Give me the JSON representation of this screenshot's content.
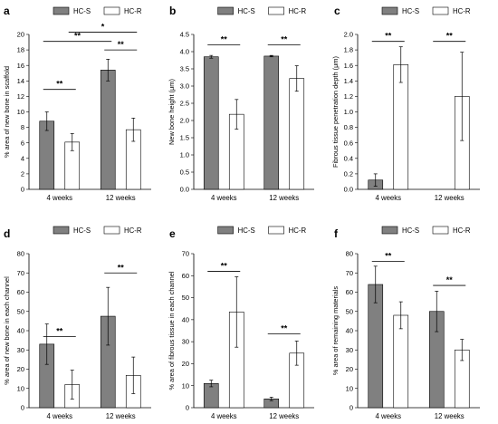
{
  "legend": {
    "series": [
      "HC-S",
      "HC-R"
    ],
    "colors": [
      "#808080",
      "#ffffff"
    ]
  },
  "chart_data": [
    {
      "panel": "a",
      "type": "bar",
      "ylabel": "% area of new bone in scaffold",
      "ylim": [
        0,
        20
      ],
      "ytick_step": 2,
      "ytick_decimals": 0,
      "categories": [
        "4 weeks",
        "12 weeks"
      ],
      "series": [
        {
          "name": "HC-S",
          "values": [
            8.8,
            15.4
          ],
          "err": [
            1.2,
            1.4
          ]
        },
        {
          "name": "HC-R",
          "values": [
            6.1,
            7.7
          ],
          "err": [
            1.1,
            1.5
          ]
        }
      ],
      "annotations": [
        {
          "text": "**",
          "from": [
            0,
            0
          ],
          "to": [
            0,
            1
          ],
          "y": 12.9
        },
        {
          "text": "**",
          "from": [
            1,
            0
          ],
          "to": [
            1,
            1
          ],
          "y": 18.0
        },
        {
          "text": "**",
          "from": [
            0,
            0
          ],
          "to": [
            1,
            0
          ],
          "y": 19.1
        },
        {
          "text": "*",
          "from": [
            0,
            1
          ],
          "to": [
            1,
            1
          ],
          "y": 20.3
        }
      ]
    },
    {
      "panel": "b",
      "type": "bar",
      "ylabel": "New bone height (μm)",
      "ylim": [
        0,
        4.5
      ],
      "ytick_step": 0.5,
      "ytick_decimals": 1,
      "categories": [
        "4 weeks",
        "12 weeks"
      ],
      "series": [
        {
          "name": "HC-S",
          "values": [
            3.85,
            3.87
          ],
          "err": [
            0.04,
            0.02
          ]
        },
        {
          "name": "HC-R",
          "values": [
            2.18,
            3.22
          ],
          "err": [
            0.43,
            0.37
          ]
        }
      ],
      "annotations": [
        {
          "text": "**",
          "from": [
            0,
            0
          ],
          "to": [
            0,
            1
          ],
          "y": 4.2
        },
        {
          "text": "**",
          "from": [
            1,
            0
          ],
          "to": [
            1,
            1
          ],
          "y": 4.2
        }
      ]
    },
    {
      "panel": "c",
      "type": "bar",
      "ylabel": "Fibrous tissue penetration depth (μm)",
      "ylim": [
        0,
        2.0
      ],
      "ytick_step": 0.2,
      "ytick_decimals": 1,
      "categories": [
        "4 weeks",
        "12 weeks"
      ],
      "series": [
        {
          "name": "HC-S",
          "values": [
            0.12,
            0
          ],
          "err": [
            0.08,
            0
          ]
        },
        {
          "name": "HC-R",
          "values": [
            1.61,
            1.2
          ],
          "err": [
            0.23,
            0.57
          ]
        }
      ],
      "annotations": [
        {
          "text": "**",
          "from": [
            0,
            0
          ],
          "to": [
            0,
            1
          ],
          "y": 1.91
        },
        {
          "text": "**",
          "from": [
            1,
            0
          ],
          "to": [
            1,
            1
          ],
          "y": 1.91
        }
      ]
    },
    {
      "panel": "d",
      "type": "bar",
      "ylabel": "% area of new bone in each channel",
      "ylim": [
        0,
        80
      ],
      "ytick_step": 10,
      "ytick_decimals": 0,
      "categories": [
        "4 weeks",
        "12 weeks"
      ],
      "series": [
        {
          "name": "HC-S",
          "values": [
            33,
            47.5
          ],
          "err": [
            10.5,
            15
          ]
        },
        {
          "name": "HC-R",
          "values": [
            12,
            16.8
          ],
          "err": [
            7.5,
            9.5
          ]
        }
      ],
      "annotations": [
        {
          "text": "**",
          "from": [
            0,
            0
          ],
          "to": [
            0,
            1
          ],
          "y": 37
        },
        {
          "text": "**",
          "from": [
            1,
            0
          ],
          "to": [
            1,
            1
          ],
          "y": 70
        }
      ]
    },
    {
      "panel": "e",
      "type": "bar",
      "ylabel": "% area of fibrous tissue in each channel",
      "ylim": [
        0,
        70
      ],
      "ytick_step": 10,
      "ytick_decimals": 0,
      "categories": [
        "4 weeks",
        "12 weeks"
      ],
      "series": [
        {
          "name": "HC-S",
          "values": [
            11,
            4
          ],
          "err": [
            1.5,
            0.8
          ]
        },
        {
          "name": "HC-R",
          "values": [
            43.5,
            24.8
          ],
          "err": [
            16,
            5.5
          ]
        }
      ],
      "annotations": [
        {
          "text": "**",
          "from": [
            0,
            0
          ],
          "to": [
            0,
            1
          ],
          "y": 62
        },
        {
          "text": "**",
          "from": [
            1,
            0
          ],
          "to": [
            1,
            1
          ],
          "y": 33.5
        }
      ]
    },
    {
      "panel": "f",
      "type": "bar",
      "ylabel": "% area of remaining materials",
      "ylim": [
        0,
        80
      ],
      "ytick_step": 10,
      "ytick_decimals": 0,
      "categories": [
        "4 weeks",
        "12 weeks"
      ],
      "series": [
        {
          "name": "HC-S",
          "values": [
            64,
            50
          ],
          "err": [
            9.5,
            10.5
          ]
        },
        {
          "name": "HC-R",
          "values": [
            48,
            30
          ],
          "err": [
            7,
            5.5
          ]
        }
      ],
      "annotations": [
        {
          "text": "**",
          "from": [
            0,
            0
          ],
          "to": [
            0,
            1
          ],
          "y": 76
        },
        {
          "text": "**",
          "from": [
            1,
            0
          ],
          "to": [
            1,
            1
          ],
          "y": 63.5
        }
      ]
    }
  ]
}
